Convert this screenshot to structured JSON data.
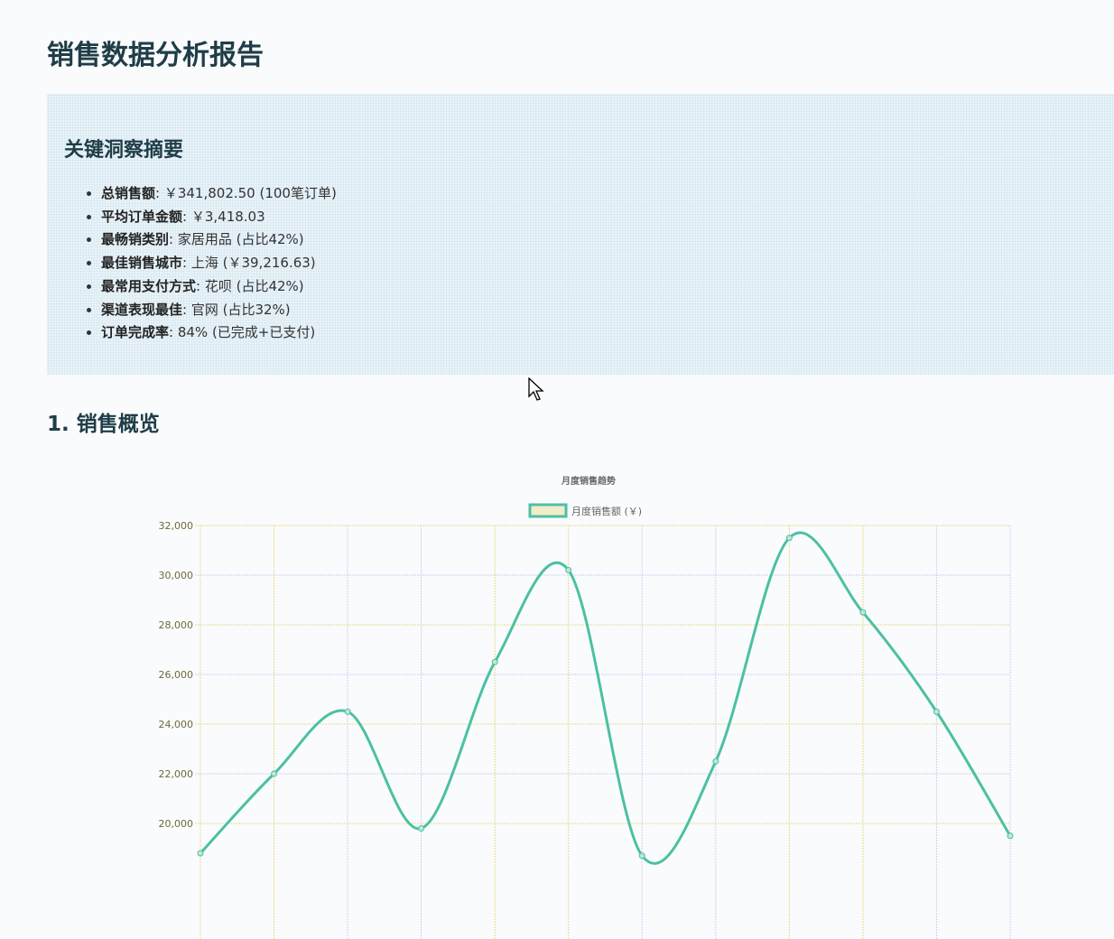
{
  "page_title": "销售数据分析报告",
  "summary": {
    "heading": "关键洞察摘要",
    "items": [
      {
        "label": "总销售额",
        "value": ": ￥341,802.50 (100笔订单)"
      },
      {
        "label": "平均订单金额",
        "value": ": ￥3,418.03"
      },
      {
        "label": "最畅销类别",
        "value": ": 家居用品 (占比42%)"
      },
      {
        "label": "最佳销售城市",
        "value": ": 上海 (￥39,216.63)"
      },
      {
        "label": "最常用支付方式",
        "value": ": 花呗 (占比42%)"
      },
      {
        "label": "渠道表现最佳",
        "value": ": 官网 (占比32%)"
      },
      {
        "label": "订单完成率",
        "value": ": 84% (已完成+已支付)"
      }
    ]
  },
  "section1": {
    "heading": "1. 销售概览"
  },
  "chart_data": {
    "type": "line",
    "title": "月度销售趋势",
    "series": [
      {
        "name": "月度销售额 (￥)",
        "values": [
          18800,
          22000,
          24500,
          19800,
          26500,
          30200,
          18700,
          22500,
          31500,
          28500,
          24500,
          19500
        ]
      }
    ],
    "yticks": [
      "20,000",
      "22,000",
      "24,000",
      "26,000",
      "28,000",
      "30,000",
      "32,000"
    ],
    "ylim_visible": [
      20000,
      32000
    ],
    "grid": true,
    "legend": "top",
    "line_color": "#4bc0a4"
  }
}
